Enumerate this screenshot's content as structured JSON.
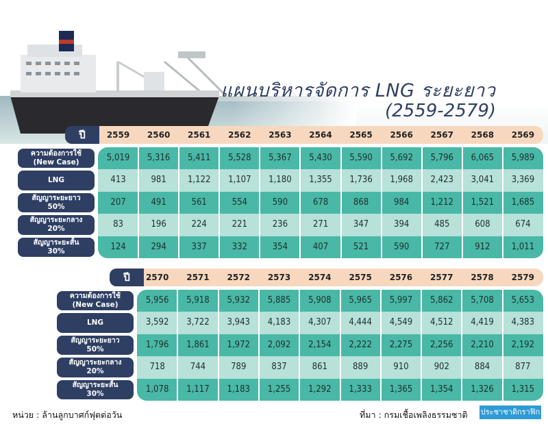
{
  "title": "แผนบริหารจัดการ LNG ระยะยาว",
  "subtitle": "(2559-2579)",
  "year_label": "ปี",
  "row_labels": [
    [
      "ความต้องการใช้",
      "(New Case)"
    ],
    [
      "LNG"
    ],
    [
      "สัญญาระยะยาว",
      "50%"
    ],
    [
      "สัญญาระยะกลาง",
      "20%"
    ],
    [
      "สัญญาระยะสั้น",
      "30%"
    ]
  ],
  "table1": {
    "years": [
      "2559",
      "2560",
      "2561",
      "2562",
      "2563",
      "2564",
      "2565",
      "2566",
      "2567",
      "2568",
      "2569"
    ],
    "rows": [
      [
        "5,019",
        "5,316",
        "5,411",
        "5,528",
        "5,367",
        "5,430",
        "5,590",
        "5,692",
        "5,796",
        "6,065",
        "5,989"
      ],
      [
        "413",
        "981",
        "1,122",
        "1,107",
        "1,180",
        "1,355",
        "1,736",
        "1,968",
        "2,423",
        "3,041",
        "3,369"
      ],
      [
        "207",
        "491",
        "561",
        "554",
        "590",
        "678",
        "868",
        "984",
        "1,212",
        "1,521",
        "1,685"
      ],
      [
        "83",
        "196",
        "224",
        "221",
        "236",
        "271",
        "347",
        "394",
        "485",
        "608",
        "674"
      ],
      [
        "124",
        "294",
        "337",
        "332",
        "354",
        "407",
        "521",
        "590",
        "727",
        "912",
        "1,011"
      ]
    ]
  },
  "table2": {
    "years": [
      "2570",
      "2571",
      "2572",
      "2573",
      "2574",
      "2575",
      "2576",
      "2577",
      "2578",
      "2579"
    ],
    "rows": [
      [
        "5,956",
        "5,918",
        "5,932",
        "5,885",
        "5,908",
        "5,965",
        "5,997",
        "5,862",
        "5,708",
        "5,653"
      ],
      [
        "3,592",
        "3,722",
        "3,943",
        "4,183",
        "4,307",
        "4,444",
        "4,549",
        "4,512",
        "4,419",
        "4,383"
      ],
      [
        "1,796",
        "1,861",
        "1,972",
        "2,092",
        "2,154",
        "2,222",
        "2,275",
        "2,256",
        "2,210",
        "2,192"
      ],
      [
        "718",
        "744",
        "789",
        "837",
        "861",
        "889",
        "910",
        "902",
        "884",
        "877"
      ],
      [
        "1,078",
        "1,117",
        "1,183",
        "1,255",
        "1,292",
        "1,333",
        "1,365",
        "1,354",
        "1,326",
        "1,315"
      ]
    ]
  },
  "footer": {
    "unit": "หน่วย : ล้านลูกบาศก์ฟุตต่อวัน",
    "source": "ที่มา : กรมเชื้อเพลิงธรรมชาติ",
    "brand": "ประชาชาติกราฟิก"
  },
  "colors": {
    "navy": "#2e3f63",
    "year_bar": "#f7d8bf",
    "teal_dark": "#49b8a6",
    "teal_light": "#b7e1d9",
    "brand_blue": "#2e9ad6"
  }
}
